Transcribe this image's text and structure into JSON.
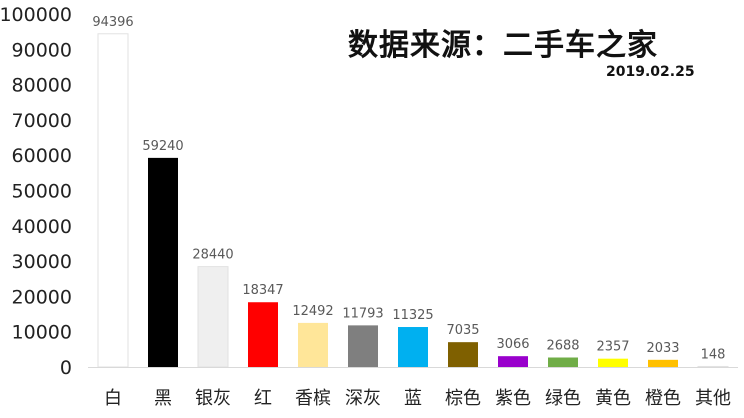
{
  "source": {
    "title": "数据来源：二手车之家",
    "date": "2019.02.25"
  },
  "chart_data": {
    "type": "bar",
    "categories": [
      "白",
      "黑",
      "银灰",
      "红",
      "香槟",
      "深灰",
      "蓝",
      "棕色",
      "紫色",
      "绿色",
      "黄色",
      "橙色",
      "其他"
    ],
    "values": [
      94396,
      59240,
      28440,
      18347,
      12492,
      11793,
      11325,
      7035,
      3066,
      2688,
      2357,
      2033,
      148
    ],
    "colors": [
      "#ffffff",
      "#000000",
      "#efefef",
      "#ff0000",
      "#ffe699",
      "#7f7f7f",
      "#00b0f0",
      "#7f6000",
      "#9900cc",
      "#70ad47",
      "#ffff00",
      "#ffc000",
      "#ffffff"
    ],
    "ylim": [
      0,
      100000
    ],
    "yticks": [
      0,
      10000,
      20000,
      30000,
      40000,
      50000,
      60000,
      70000,
      80000,
      90000,
      100000
    ],
    "grid": false,
    "legend": "none"
  }
}
